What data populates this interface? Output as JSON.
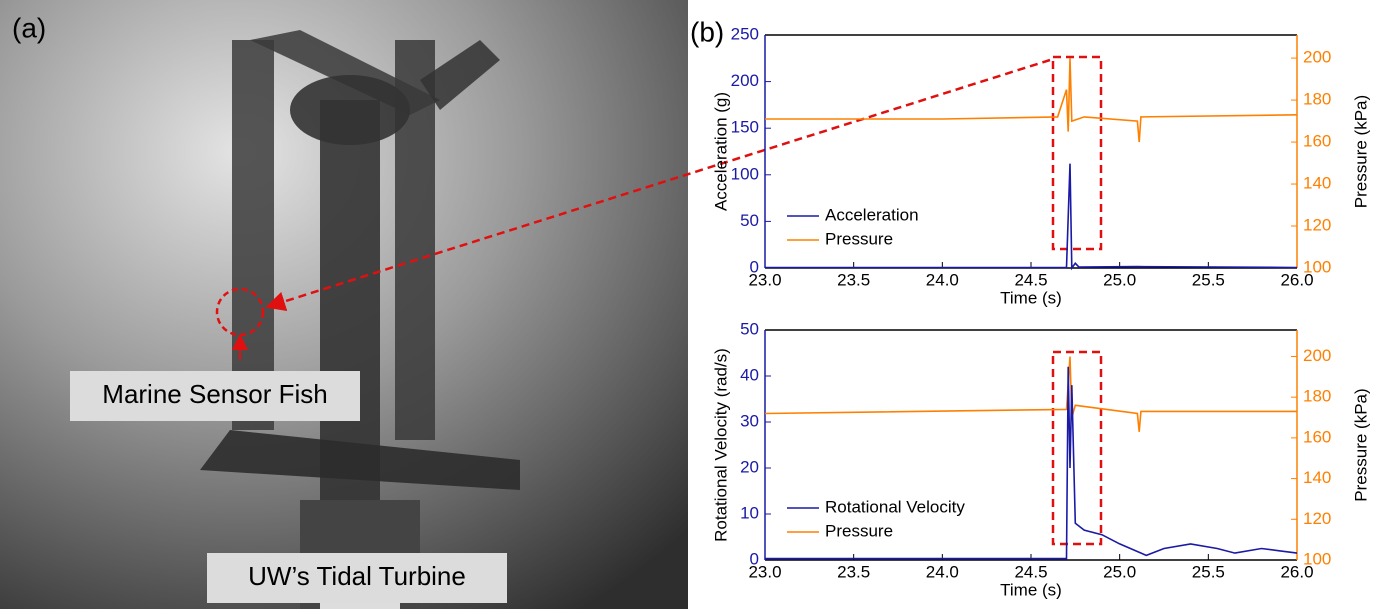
{
  "panel_a": {
    "label": "(a)",
    "annotations": [
      "Marine Sensor Fish",
      "UW’s Tidal Turbine"
    ]
  },
  "panel_b_label": "(b)",
  "chart_data": [
    {
      "type": "line",
      "ylabel": "Acceleration (g)",
      "y2label": "Pressure (kPa)",
      "xlabel": "Time (s)",
      "xlim": [
        23,
        26
      ],
      "xticks": [
        {
          "value": 23,
          "label": "23.0"
        },
        23.5,
        {
          "value": 24,
          "label": "24.0"
        },
        24.5,
        {
          "value": 25,
          "label": "25.0"
        },
        25.5,
        {
          "value": 26,
          "label": "26.0"
        }
      ],
      "ylim": [
        0,
        250
      ],
      "yticks": [
        0,
        50,
        100,
        150,
        200,
        250
      ],
      "y2lim": [
        100,
        211
      ],
      "y2ticks": [
        100,
        120,
        140,
        160,
        180,
        200
      ],
      "legend": "lower left",
      "series": [
        {
          "name": "Acceleration",
          "color": "#1a1aa6",
          "x": [
            23.0,
            24.7,
            24.72,
            24.73,
            24.75,
            24.77,
            25.1,
            26.0
          ],
          "values": [
            0.5,
            0.5,
            112,
            0,
            5,
            1,
            1.5,
            0.5
          ]
        },
        {
          "name": "Pressure",
          "color": "#ff8000",
          "axis": "y2",
          "x": [
            23.0,
            24.0,
            24.65,
            24.7,
            24.71,
            24.72,
            24.73,
            24.8,
            25.1,
            25.11,
            25.12,
            26.0
          ],
          "values": [
            171,
            171,
            172,
            185,
            165,
            200,
            170,
            172,
            170,
            160,
            172,
            173
          ]
        }
      ]
    },
    {
      "type": "line",
      "ylabel": "Rotational Velocity (rad/s)",
      "y2label": "Pressure (kPa)",
      "xlabel": "Time (s)",
      "xlim": [
        23,
        26
      ],
      "xticks": [
        {
          "value": 23,
          "label": "23.0"
        },
        23.5,
        {
          "value": 24,
          "label": "24.0"
        },
        24.5,
        {
          "value": 25,
          "label": "25.0"
        },
        25.5,
        {
          "value": 26,
          "label": "26.0"
        }
      ],
      "ylim": [
        0,
        50
      ],
      "yticks": [
        0,
        10,
        20,
        30,
        40,
        50
      ],
      "y2lim": [
        100,
        213
      ],
      "y2ticks": [
        100,
        120,
        140,
        160,
        180,
        200
      ],
      "legend": "lower left",
      "series": [
        {
          "name": "Rotational Velocity",
          "color": "#1a1aa6",
          "x": [
            23.0,
            24.7,
            24.71,
            24.72,
            24.73,
            24.75,
            24.8,
            24.9,
            25.0,
            25.15,
            25.25,
            25.4,
            25.55,
            25.65,
            25.8,
            25.9,
            26.0
          ],
          "values": [
            0.3,
            0.3,
            42,
            20,
            38,
            8,
            6.5,
            5.5,
            3.5,
            1,
            2.5,
            3.5,
            2.5,
            1.5,
            2.5,
            2,
            1.5
          ]
        },
        {
          "name": "Pressure",
          "color": "#ff8000",
          "axis": "y2",
          "x": [
            23.0,
            24.7,
            24.72,
            24.73,
            24.75,
            25.1,
            25.11,
            25.12,
            26.0
          ],
          "values": [
            172,
            174,
            200,
            170,
            176,
            172,
            163,
            173,
            173
          ]
        }
      ]
    }
  ]
}
